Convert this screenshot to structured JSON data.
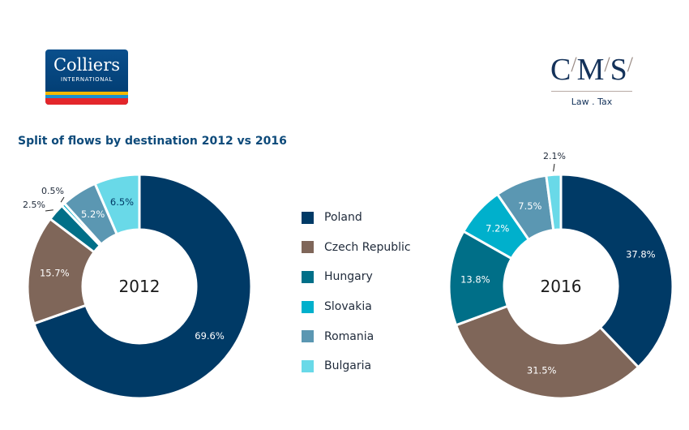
{
  "logos": {
    "colliers": {
      "name": "Colliers",
      "sub": "INTERNATIONAL"
    },
    "cms": {
      "letters": [
        "C",
        "M",
        "S"
      ],
      "tagline": "Law . Tax"
    }
  },
  "title": "Split of flows by destination 2012 vs 2016",
  "legend": [
    {
      "label": "Poland",
      "color": "#003a66"
    },
    {
      "label": "Czech Republic",
      "color": "#7f6659"
    },
    {
      "label": "Hungary",
      "color": "#006f88"
    },
    {
      "label": "Slovakia",
      "color": "#00b0cc"
    },
    {
      "label": "Romania",
      "color": "#5b97b2"
    },
    {
      "label": "Bulgaria",
      "color": "#69d9e8"
    }
  ],
  "chart_data": [
    {
      "type": "pie",
      "donut": true,
      "center_label": "2012",
      "categories": [
        "Poland",
        "Czech Republic",
        "Hungary",
        "Slovakia",
        "Romania",
        "Bulgaria"
      ],
      "values": [
        69.6,
        15.7,
        2.5,
        0.5,
        5.2,
        6.5
      ],
      "labels": [
        "69.6%",
        "15.7%",
        "2.5%",
        "0.5%",
        "5.2%",
        "6.5%"
      ]
    },
    {
      "type": "pie",
      "donut": true,
      "center_label": "2016",
      "categories": [
        "Poland",
        "Czech Republic",
        "Hungary",
        "Slovakia",
        "Romania",
        "Bulgaria"
      ],
      "values": [
        37.8,
        31.5,
        13.8,
        7.2,
        7.5,
        2.1
      ],
      "labels": [
        "37.8%",
        "31.5%",
        "13.8%",
        "7.2%",
        "7.5%",
        "2.1%"
      ]
    }
  ]
}
